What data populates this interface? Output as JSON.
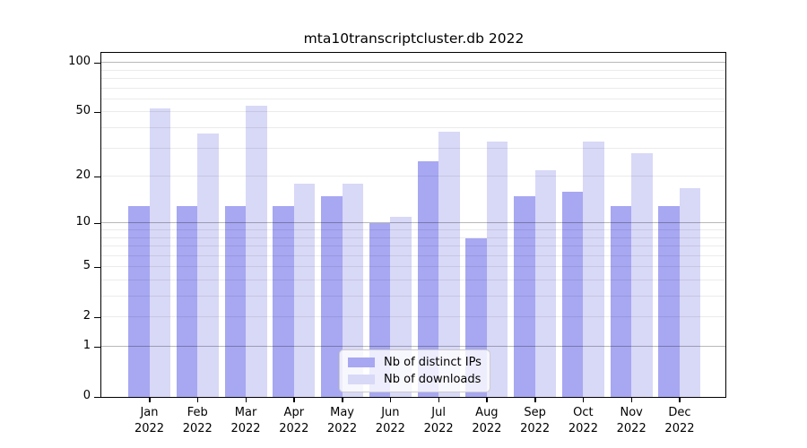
{
  "title": "mta10transcriptcluster.db 2022",
  "colors": {
    "ips": "#a7a7f2",
    "downloads": "#d8d8f7",
    "grid_major": "rgba(0,0,0,0.28)",
    "grid_minor": "rgba(0,0,0,0.08)",
    "axis": "#000000"
  },
  "legend": {
    "items": [
      {
        "label": "Nb of distinct IPs",
        "series": "ips"
      },
      {
        "label": "Nb of downloads",
        "series": "downloads"
      }
    ]
  },
  "chart_data": {
    "type": "bar",
    "title": "mta10transcriptcluster.db 2022",
    "categories": [
      "Jan 2022",
      "Feb 2022",
      "Mar 2022",
      "Apr 2022",
      "May 2022",
      "Jun 2022",
      "Jul 2022",
      "Aug 2022",
      "Sep 2022",
      "Oct 2022",
      "Nov 2022",
      "Dec 2022"
    ],
    "series": [
      {
        "name": "Nb of distinct IPs",
        "key": "ips",
        "color": "#a7a7f2",
        "values": [
          13,
          13,
          13,
          13,
          15,
          10,
          25,
          8,
          15,
          16,
          13,
          13
        ]
      },
      {
        "name": "Nb of downloads",
        "key": "downloads",
        "color": "#d8d8f7",
        "values": [
          53,
          37,
          55,
          18,
          18,
          11,
          38,
          33,
          22,
          33,
          28,
          17
        ]
      }
    ],
    "xlabel": "",
    "ylabel": "",
    "yscale": "log10(1+value)",
    "yticks": [
      0,
      1,
      2,
      5,
      10,
      20,
      50,
      100
    ],
    "grid_major_values": [
      1,
      10,
      100
    ],
    "grid_minor_values": [
      2,
      3,
      4,
      5,
      6,
      7,
      8,
      9,
      20,
      30,
      40,
      50,
      60,
      70,
      80,
      90
    ],
    "ylim": [
      0,
      115
    ],
    "grid": "horizontal",
    "legend_position": "bottom-center"
  }
}
